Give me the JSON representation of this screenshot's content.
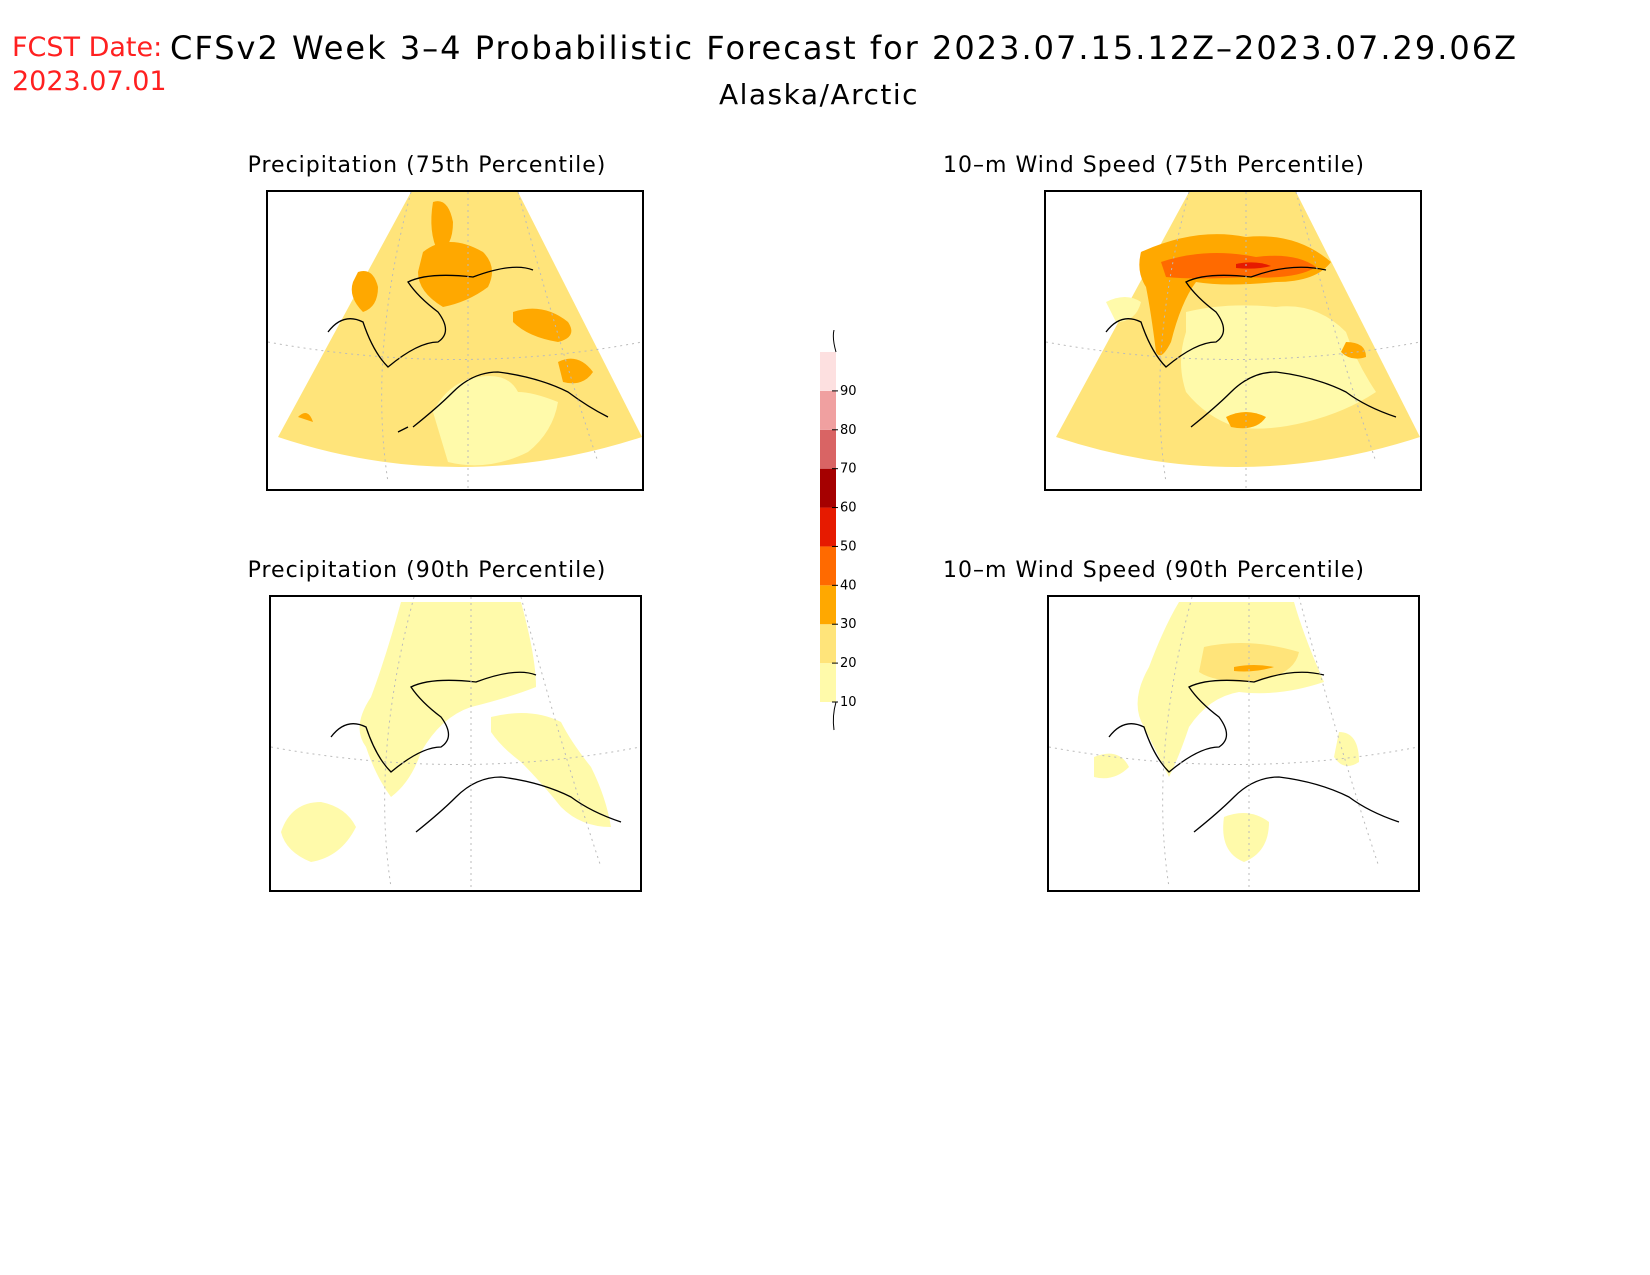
{
  "header": {
    "fcst_label": "FCST Date:",
    "fcst_date": "2023.07.01",
    "title": "CFSv2 Week 3–4 Probabilistic Forecast for 2023.07.15.12Z–2023.07.29.06Z",
    "region": "Alaska/Arctic"
  },
  "panels": [
    {
      "title": "Precipitation (75th Percentile)"
    },
    {
      "title": "10–m Wind Speed (75th Percentile)"
    },
    {
      "title": "Precipitation (90th Percentile)"
    },
    {
      "title": "10–m Wind Speed (90th Percentile)"
    }
  ],
  "colorbar": {
    "levels": [
      "10",
      "20",
      "30",
      "40",
      "50",
      "60",
      "70",
      "80",
      "90"
    ],
    "colors": [
      "#fffaaa",
      "#ffe47a",
      "#ffa800",
      "#ff6a00",
      "#e61a00",
      "#a50000",
      "#d96464",
      "#f0a0a0",
      "#fde0e0"
    ]
  }
}
